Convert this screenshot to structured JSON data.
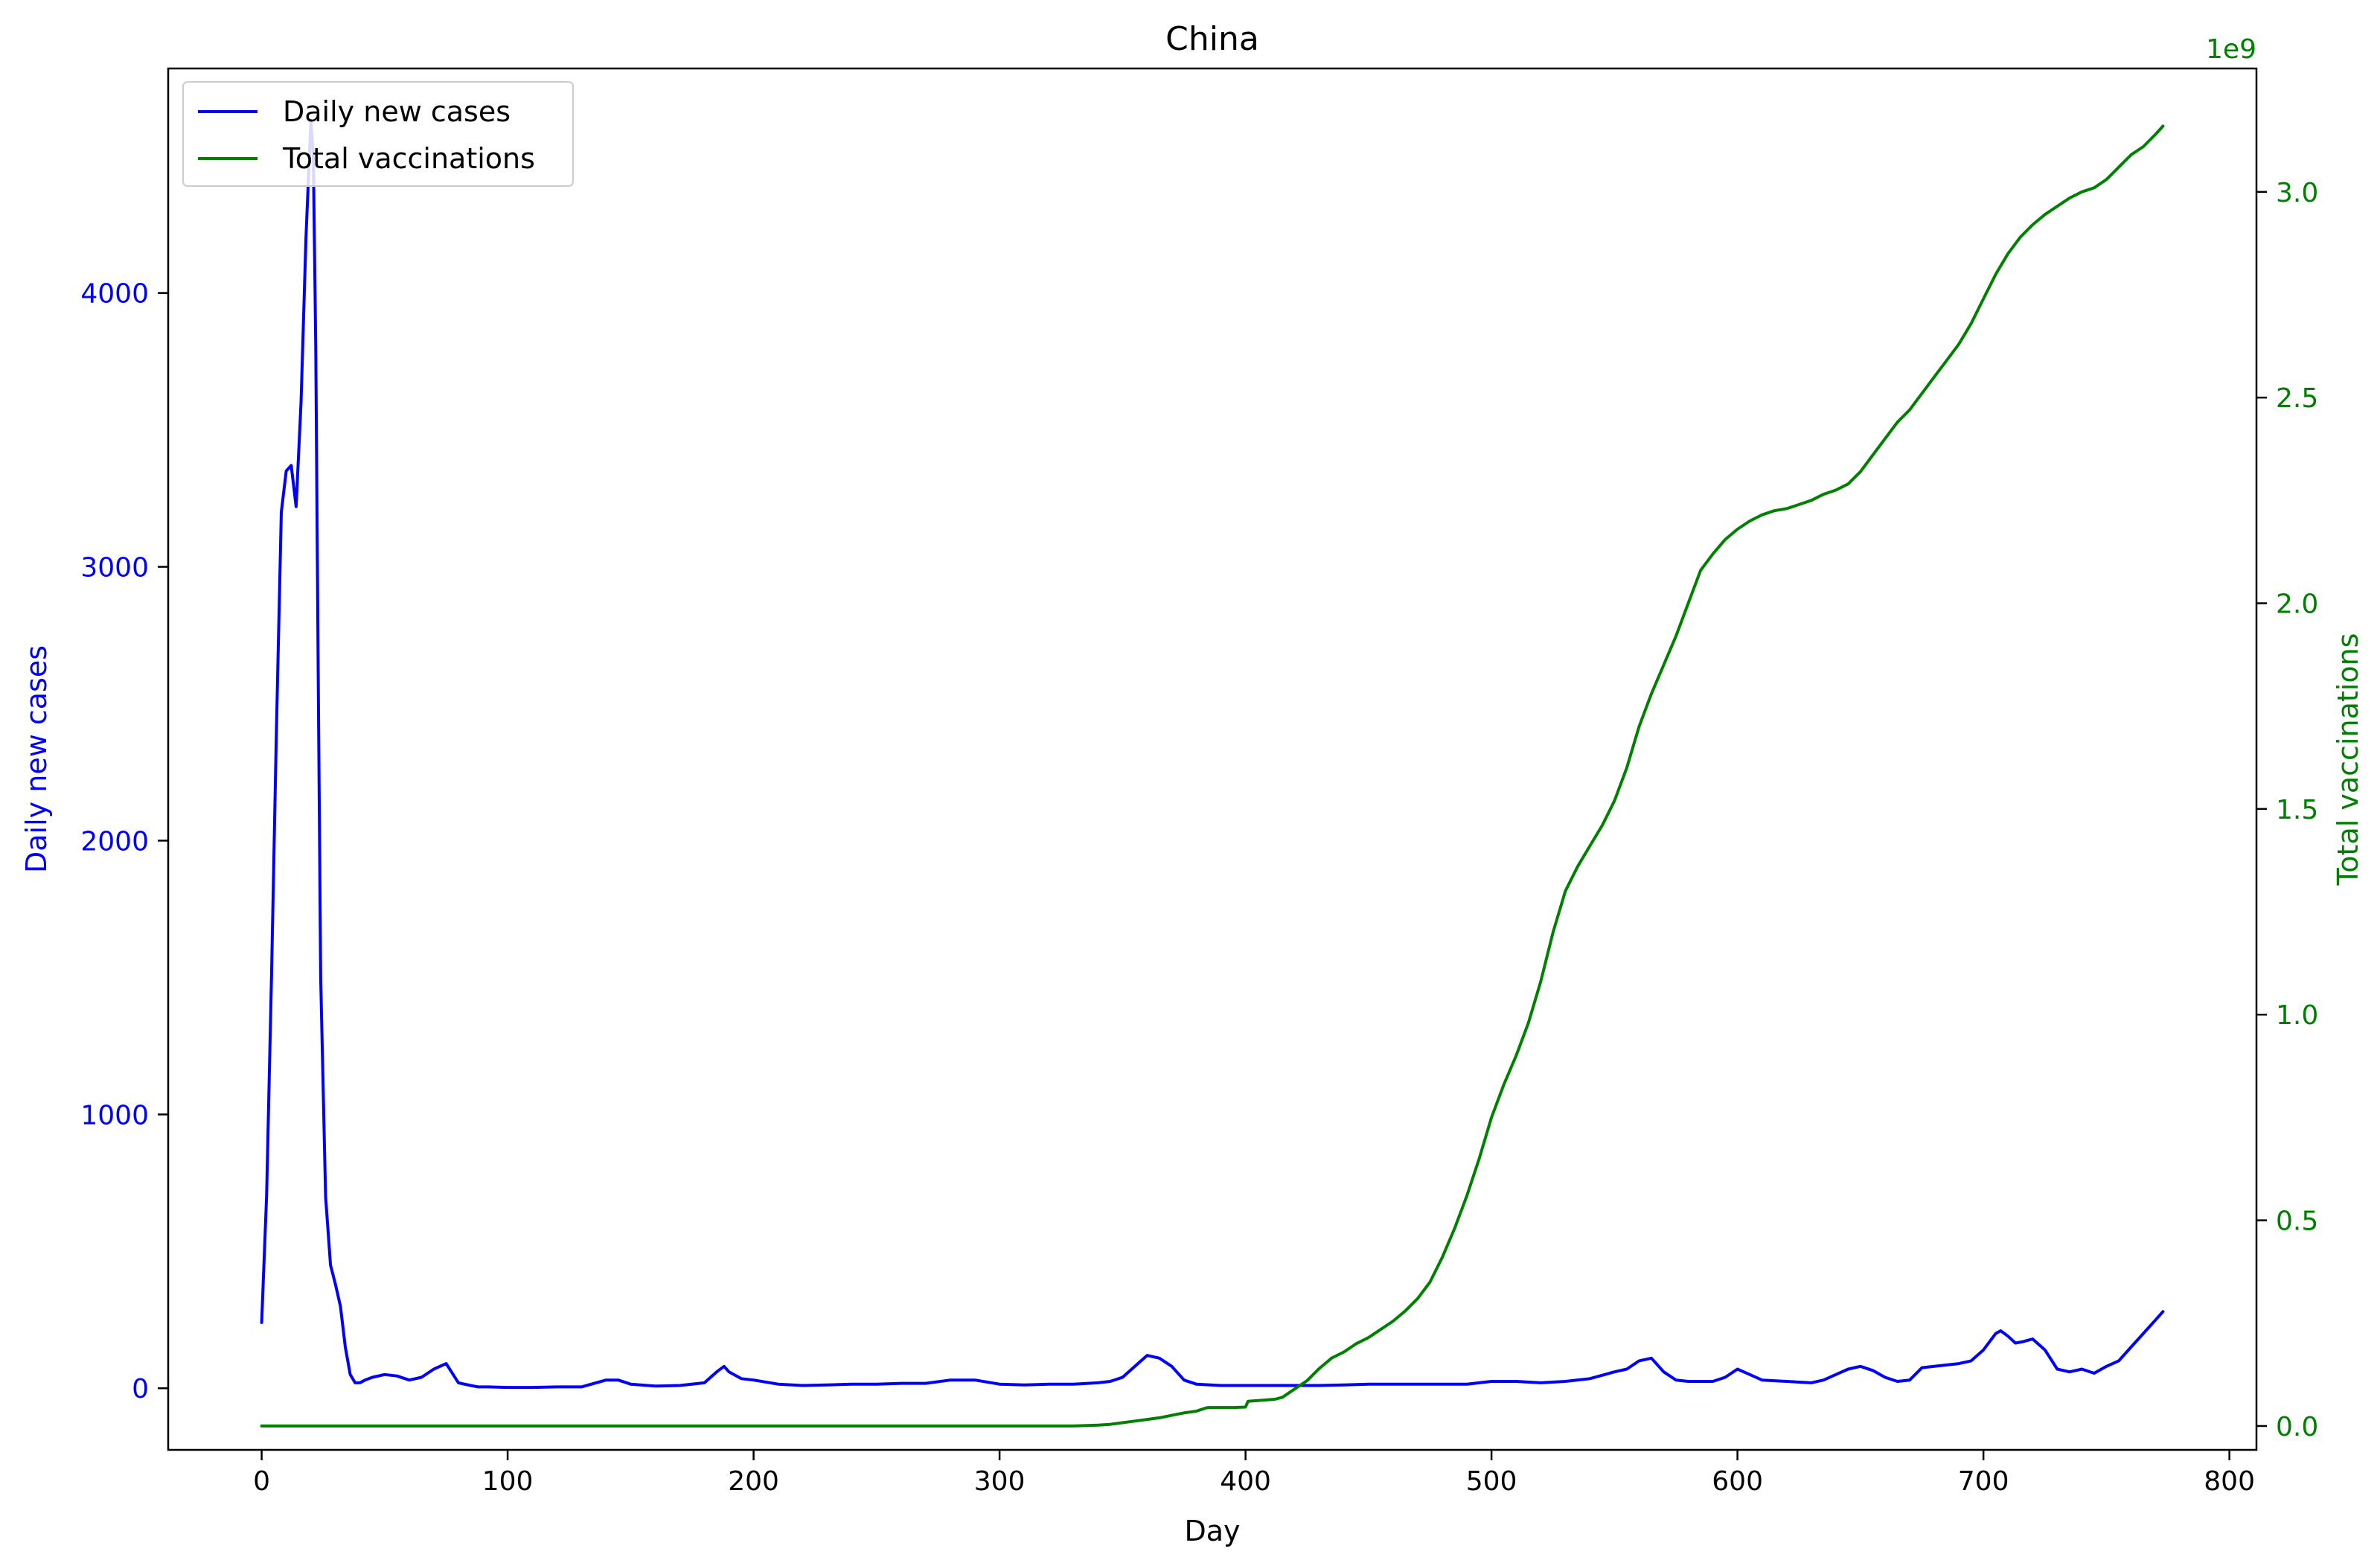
{
  "chart_data": {
    "type": "line",
    "title": "China",
    "xlabel": "Day",
    "ylabel_left": "Daily new cases",
    "ylabel_right": "Total vaccinations",
    "right_axis_offset_label": "1e9",
    "xlim": [
      -38,
      811
    ],
    "ylim_left": [
      -225,
      4820
    ],
    "ylim_right": [
      -0.058,
      3.3
    ],
    "x_ticks": [
      0,
      100,
      200,
      300,
      400,
      500,
      600,
      700,
      800
    ],
    "y_ticks_left": [
      0,
      1000,
      2000,
      3000,
      4000
    ],
    "y_ticks_right": [
      0.0,
      0.5,
      1.0,
      1.5,
      2.0,
      2.5,
      3.0
    ],
    "y_tick_labels_right": [
      "0.0",
      "0.5",
      "1.0",
      "1.5",
      "2.0",
      "2.5",
      "3.0"
    ],
    "legend_position": "upper-left",
    "colors": {
      "cases": "#0000ff",
      "vaccinations": "#008000"
    },
    "series": [
      {
        "name": "Daily new cases",
        "axis": "left",
        "color": "#0000ff",
        "x": [
          0,
          2,
          4,
          6,
          8,
          10,
          12,
          14,
          16,
          18,
          20,
          21,
          22,
          23,
          24,
          26,
          28,
          30,
          32,
          34,
          36,
          38,
          40,
          42,
          45,
          50,
          55,
          60,
          65,
          70,
          75,
          80,
          85,
          88,
          92,
          100,
          110,
          120,
          130,
          140,
          145,
          150,
          160,
          170,
          180,
          185,
          188,
          190,
          195,
          200,
          210,
          220,
          230,
          240,
          250,
          260,
          270,
          280,
          290,
          300,
          310,
          320,
          330,
          340,
          345,
          350,
          355,
          360,
          365,
          370,
          375,
          380,
          390,
          400,
          410,
          420,
          430,
          440,
          450,
          460,
          470,
          480,
          490,
          500,
          510,
          520,
          530,
          540,
          550,
          555,
          560,
          565,
          570,
          575,
          580,
          590,
          595,
          600,
          605,
          610,
          620,
          630,
          635,
          640,
          645,
          650,
          655,
          660,
          665,
          670,
          675,
          680,
          690,
          695,
          700,
          705,
          707,
          710,
          713,
          716,
          720,
          725,
          730,
          735,
          740,
          745,
          750,
          755,
          760,
          765,
          770,
          773
        ],
        "values": [
          240,
          700,
          1500,
          2400,
          3200,
          3350,
          3370,
          3220,
          3600,
          4200,
          4630,
          4500,
          3800,
          2600,
          1500,
          700,
          450,
          380,
          300,
          150,
          50,
          20,
          20,
          30,
          40,
          50,
          45,
          30,
          40,
          70,
          90,
          20,
          10,
          5,
          5,
          3,
          3,
          5,
          5,
          30,
          30,
          15,
          8,
          10,
          20,
          60,
          80,
          60,
          35,
          30,
          15,
          10,
          12,
          15,
          15,
          18,
          18,
          30,
          30,
          15,
          12,
          15,
          15,
          20,
          25,
          40,
          80,
          120,
          110,
          80,
          30,
          15,
          10,
          10,
          10,
          10,
          10,
          12,
          15,
          15,
          15,
          15,
          15,
          25,
          25,
          20,
          25,
          35,
          60,
          70,
          100,
          110,
          60,
          30,
          25,
          25,
          40,
          70,
          50,
          30,
          25,
          20,
          30,
          50,
          70,
          80,
          65,
          40,
          25,
          30,
          75,
          80,
          90,
          100,
          140,
          200,
          210,
          190,
          165,
          170,
          180,
          140,
          70,
          60,
          70,
          55,
          80,
          100,
          150,
          200,
          250,
          280
        ]
      },
      {
        "name": "Total vaccinations",
        "axis": "right",
        "color": "#008000",
        "x": [
          0,
          100,
          200,
          300,
          330,
          340,
          345,
          350,
          355,
          360,
          365,
          370,
          375,
          380,
          382,
          384,
          385,
          395,
          400,
          401,
          412,
          415,
          420,
          425,
          430,
          435,
          440,
          445,
          450,
          455,
          460,
          465,
          470,
          475,
          480,
          485,
          490,
          495,
          500,
          505,
          510,
          515,
          520,
          525,
          530,
          535,
          540,
          545,
          550,
          555,
          560,
          565,
          570,
          575,
          580,
          585,
          590,
          595,
          600,
          605,
          610,
          615,
          620,
          625,
          630,
          635,
          640,
          645,
          650,
          655,
          660,
          665,
          670,
          675,
          680,
          685,
          690,
          695,
          700,
          705,
          710,
          715,
          720,
          725,
          730,
          735,
          740,
          745,
          750,
          755,
          760,
          765,
          770,
          773
        ],
        "values": [
          0.0,
          0.0,
          0.0,
          0.0,
          0.0,
          0.002,
          0.004,
          0.008,
          0.012,
          0.016,
          0.02,
          0.026,
          0.032,
          0.036,
          0.04,
          0.044,
          0.045,
          0.045,
          0.046,
          0.06,
          0.065,
          0.07,
          0.09,
          0.11,
          0.14,
          0.165,
          0.18,
          0.2,
          0.215,
          0.235,
          0.255,
          0.28,
          0.31,
          0.35,
          0.41,
          0.48,
          0.56,
          0.65,
          0.75,
          0.83,
          0.9,
          0.98,
          1.08,
          1.2,
          1.3,
          1.36,
          1.41,
          1.46,
          1.52,
          1.6,
          1.7,
          1.78,
          1.85,
          1.92,
          2.0,
          2.08,
          2.12,
          2.155,
          2.18,
          2.2,
          2.215,
          2.225,
          2.23,
          2.24,
          2.25,
          2.265,
          2.275,
          2.29,
          2.32,
          2.36,
          2.4,
          2.44,
          2.47,
          2.51,
          2.55,
          2.59,
          2.63,
          2.68,
          2.74,
          2.8,
          2.85,
          2.89,
          2.92,
          2.945,
          2.965,
          2.985,
          3.0,
          3.01,
          3.03,
          3.06,
          3.09,
          3.11,
          3.14,
          3.16
        ]
      }
    ]
  }
}
